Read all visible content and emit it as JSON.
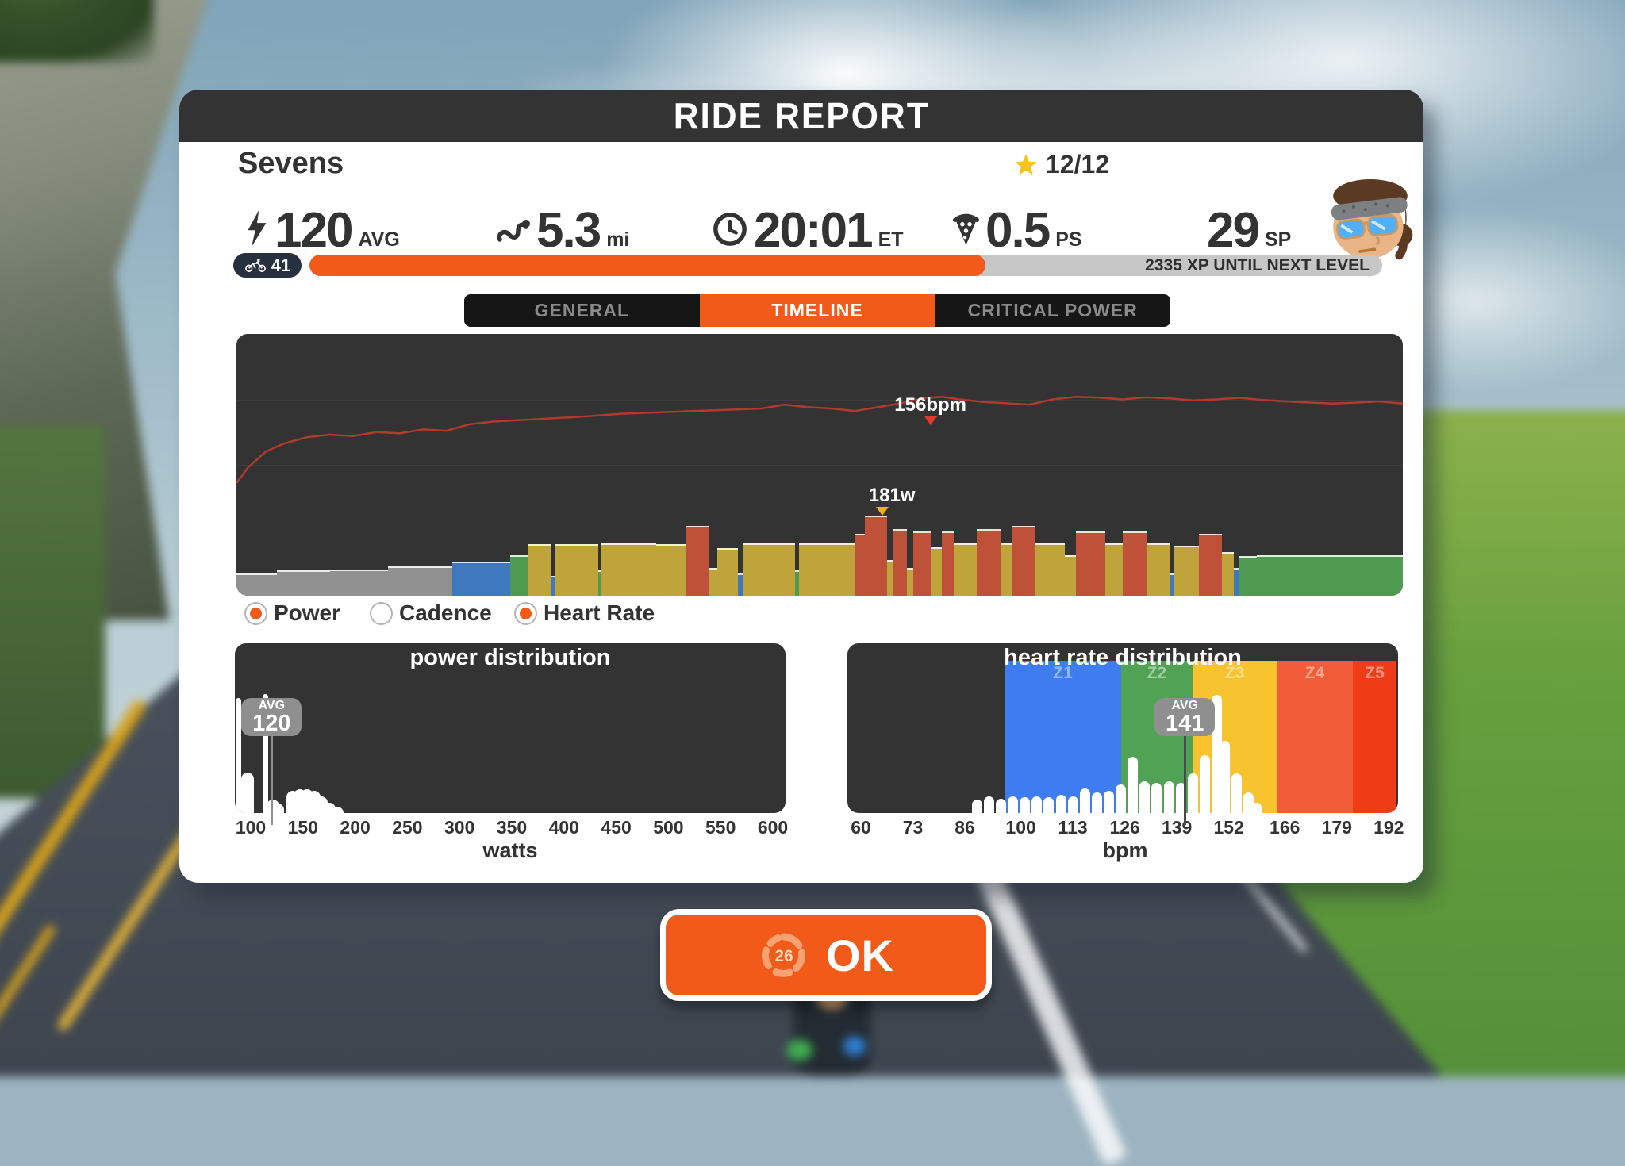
{
  "header": {
    "title": "RIDE REPORT"
  },
  "ride": {
    "name": "Sevens",
    "stars": "12/12",
    "level": "41",
    "xp_text": "2335 XP UNTIL NEXT LEVEL",
    "xp_progress_pct": 63,
    "stats": [
      {
        "icon": "power-icon",
        "value": "120",
        "unit": "AVG"
      },
      {
        "icon": "route-icon",
        "value": "5.3",
        "unit": "mi"
      },
      {
        "icon": "time-icon",
        "value": "20:01",
        "unit": "ET"
      },
      {
        "icon": "pizza-icon",
        "value": "0.5",
        "unit": "PS"
      },
      {
        "icon": null,
        "value": "29",
        "unit": "SP"
      }
    ]
  },
  "tabs": [
    {
      "label": "GENERAL",
      "active": false
    },
    {
      "label": "TIMELINE",
      "active": true
    },
    {
      "label": "CRITICAL POWER",
      "active": false
    }
  ],
  "toggles": [
    {
      "label": "Power",
      "selected": true
    },
    {
      "label": "Cadence",
      "selected": false
    },
    {
      "label": "Heart Rate",
      "selected": true
    }
  ],
  "ok_button": {
    "label": "OK",
    "countdown": "26"
  },
  "colors": {
    "accent_orange": "#F25A1A",
    "charcoal": "#333333",
    "xp_track_gray": "#C6C6C6",
    "avg_badge_gray": "#8F8F8F",
    "hr_line_red": "#B23A2C",
    "star_gold": "#F5C51C"
  },
  "chart_data": [
    {
      "id": "timeline",
      "type": "area",
      "x_axis": "elapsed ride time",
      "hr_peak_label": "156bpm",
      "power_peak_label": "181w",
      "power_zone_colors": {
        "gray": "#909090",
        "blue": "#3E79C0",
        "green": "#4F9A51",
        "yellow": "#BEA43B",
        "red": "#C05139"
      },
      "power_segments_pct": [
        [
          0,
          3.5,
          8,
          "gray"
        ],
        [
          3.5,
          8,
          9,
          "gray"
        ],
        [
          8,
          13,
          9.5,
          "gray"
        ],
        [
          13,
          18.5,
          10.5,
          "gray"
        ],
        [
          18.5,
          23.5,
          12.5,
          "blue"
        ],
        [
          23.5,
          25,
          15,
          "green"
        ],
        [
          25,
          27,
          19,
          "yellow"
        ],
        [
          27,
          27.3,
          7,
          "blue"
        ],
        [
          27.3,
          31,
          19,
          "yellow"
        ],
        [
          31,
          31.3,
          9,
          "green"
        ],
        [
          31.3,
          36,
          19.5,
          "yellow"
        ],
        [
          36,
          38.5,
          19,
          "yellow"
        ],
        [
          38.5,
          40.5,
          26,
          "red"
        ],
        [
          40.5,
          41.2,
          10,
          "yellow"
        ],
        [
          41.2,
          43,
          17.5,
          "yellow"
        ],
        [
          43,
          43.4,
          8,
          "blue"
        ],
        [
          43.4,
          47.9,
          19.5,
          "yellow"
        ],
        [
          47.9,
          48.2,
          9,
          "green"
        ],
        [
          48.2,
          53,
          19.5,
          "yellow"
        ],
        [
          53,
          53.9,
          23,
          "red"
        ],
        [
          53.9,
          55.8,
          30,
          "red"
        ],
        [
          55.8,
          56.3,
          13,
          "yellow"
        ],
        [
          56.3,
          57.5,
          25,
          "red"
        ],
        [
          57.5,
          58,
          10,
          "yellow"
        ],
        [
          58,
          59.5,
          24,
          "red"
        ],
        [
          59.5,
          60.5,
          18,
          "yellow"
        ],
        [
          60.5,
          61.5,
          24,
          "red"
        ],
        [
          61.5,
          63.5,
          19.5,
          "yellow"
        ],
        [
          63.5,
          65.5,
          25,
          "red"
        ],
        [
          65.5,
          66.5,
          19.5,
          "yellow"
        ],
        [
          66.5,
          68.5,
          26,
          "red"
        ],
        [
          68.5,
          71,
          19.5,
          "yellow"
        ],
        [
          71,
          72,
          15,
          "yellow"
        ],
        [
          72,
          74.5,
          24,
          "red"
        ],
        [
          74.5,
          76,
          19.5,
          "yellow"
        ],
        [
          76,
          78,
          24,
          "red"
        ],
        [
          78,
          80,
          19.5,
          "yellow"
        ],
        [
          80,
          80.4,
          8,
          "blue"
        ],
        [
          80.4,
          82.5,
          18.5,
          "yellow"
        ],
        [
          82.5,
          84.5,
          23,
          "red"
        ],
        [
          84.5,
          85.5,
          16,
          "yellow"
        ],
        [
          85.5,
          86,
          10,
          "blue"
        ],
        [
          86,
          87.5,
          14.5,
          "green"
        ],
        [
          87.5,
          100,
          15,
          "green"
        ]
      ],
      "hr_line_pct": [
        [
          0,
          57
        ],
        [
          1,
          51
        ],
        [
          2.5,
          45
        ],
        [
          4,
          42
        ],
        [
          6,
          39.5
        ],
        [
          8,
          38.5
        ],
        [
          10,
          39
        ],
        [
          12,
          37.5
        ],
        [
          14,
          38
        ],
        [
          16,
          36.5
        ],
        [
          18,
          37
        ],
        [
          20,
          34.5
        ],
        [
          22,
          33.5
        ],
        [
          24,
          33
        ],
        [
          26,
          32.5
        ],
        [
          28,
          32
        ],
        [
          30,
          31.5
        ],
        [
          33,
          30.5
        ],
        [
          36,
          30
        ],
        [
          39,
          29.5
        ],
        [
          42,
          29
        ],
        [
          45,
          28.5
        ],
        [
          47,
          27
        ],
        [
          49,
          28
        ],
        [
          51,
          28.5
        ],
        [
          53,
          29.5
        ],
        [
          55,
          28
        ],
        [
          57,
          26.5
        ],
        [
          59,
          24.5
        ],
        [
          60.5,
          24
        ],
        [
          62,
          25
        ],
        [
          64,
          26
        ],
        [
          66,
          26.5
        ],
        [
          68,
          27
        ],
        [
          70,
          25
        ],
        [
          72,
          24
        ],
        [
          74,
          24.3
        ],
        [
          76,
          25
        ],
        [
          78,
          24.2
        ],
        [
          80,
          24.6
        ],
        [
          82,
          25.4
        ],
        [
          84,
          25
        ],
        [
          86,
          24.4
        ],
        [
          88,
          25.2
        ],
        [
          90,
          25.8
        ],
        [
          92,
          26.2
        ],
        [
          94,
          26.6
        ],
        [
          96,
          26.2
        ],
        [
          98,
          25.8
        ],
        [
          100,
          26.6
        ]
      ]
    },
    {
      "id": "power-distribution",
      "type": "histogram",
      "title": "power distribution",
      "xlabel": "watts",
      "x_ticks": [
        100,
        150,
        200,
        250,
        300,
        350,
        400,
        450,
        500,
        550,
        600
      ],
      "avg_label": "AVG",
      "avg_value": "120",
      "avg_watts": 120,
      "bars": [
        [
          88,
          0.88
        ],
        [
          97,
          0.31
        ],
        [
          114,
          0.91
        ],
        [
          121,
          0.1
        ],
        [
          126,
          0.07
        ],
        [
          140,
          0.17
        ],
        [
          147,
          0.18
        ],
        [
          154,
          0.18
        ],
        [
          161,
          0.17
        ],
        [
          168,
          0.13
        ],
        [
          175,
          0.08
        ],
        [
          183,
          0.05
        ]
      ],
      "thin_bars": [
        88,
        114
      ]
    },
    {
      "id": "heart-rate-distribution",
      "type": "histogram",
      "title": "heart rate distribution",
      "xlabel": "bpm",
      "x_ticks": [
        60,
        73,
        86,
        100,
        113,
        126,
        139,
        152,
        166,
        179,
        192
      ],
      "avg_label": "AVG",
      "avg_value": "141",
      "avg_bpm": 141,
      "zones": [
        {
          "label": "Z1",
          "from": 96,
          "to": 125,
          "color": "#3D7DF1"
        },
        {
          "label": "Z2",
          "from": 125,
          "to": 143,
          "color": "#50A254"
        },
        {
          "label": "Z3",
          "from": 143,
          "to": 164,
          "color": "#F7C32E"
        },
        {
          "label": "Z4",
          "from": 164,
          "to": 183,
          "color": "#F25C38"
        },
        {
          "label": "Z5",
          "from": 183,
          "to": 194,
          "color": "#EF3B16"
        }
      ],
      "bars": [
        [
          89,
          0.1
        ],
        [
          92,
          0.13
        ],
        [
          95,
          0.11
        ],
        [
          98,
          0.13
        ],
        [
          101,
          0.12
        ],
        [
          104,
          0.13
        ],
        [
          107,
          0.12
        ],
        [
          110,
          0.14
        ],
        [
          113,
          0.13
        ],
        [
          116,
          0.19
        ],
        [
          119,
          0.16
        ],
        [
          122,
          0.17
        ],
        [
          125,
          0.22
        ],
        [
          128,
          0.43
        ],
        [
          131,
          0.24
        ],
        [
          134,
          0.23
        ],
        [
          137,
          0.24
        ],
        [
          140,
          0.23
        ],
        [
          143,
          0.3
        ],
        [
          146,
          0.44
        ],
        [
          149,
          0.9
        ],
        [
          151,
          0.55
        ],
        [
          154,
          0.3
        ],
        [
          157,
          0.16
        ],
        [
          159,
          0.08
        ]
      ]
    }
  ]
}
